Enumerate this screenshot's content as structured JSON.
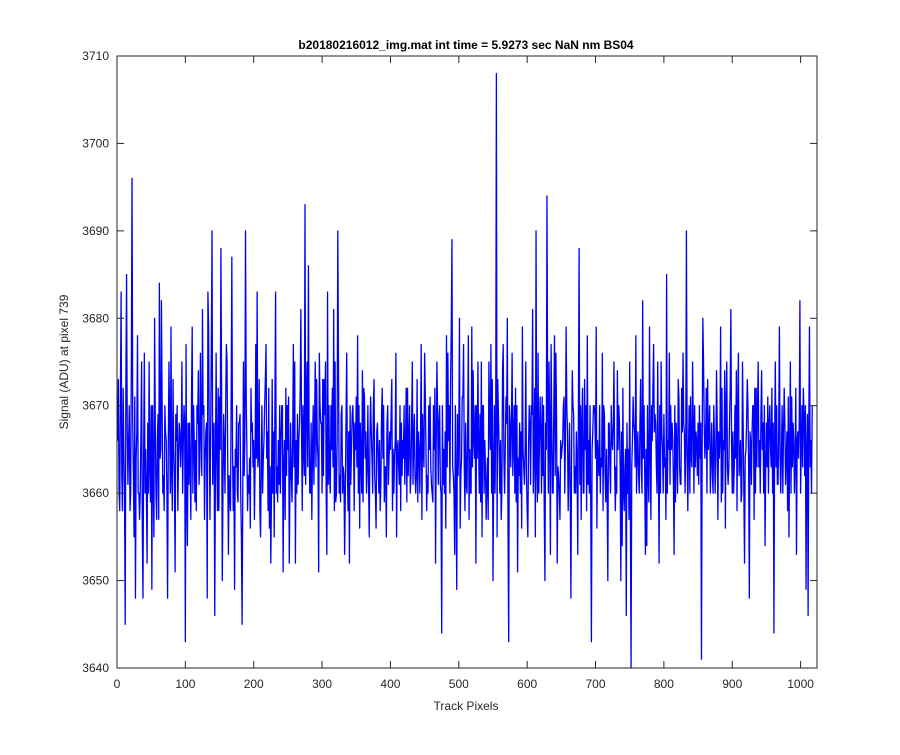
{
  "figure": {
    "background": "#ffffff"
  },
  "chart_data": {
    "type": "line",
    "title": "b20180216012_img.mat int time = 5.9273 sec  NaN nm BS04",
    "xlabel": "Track Pixels",
    "ylabel": "Signal (ADU) at pixel 739",
    "xlim": [
      0,
      1024
    ],
    "ylim": [
      3640,
      3710
    ],
    "xticks": [
      0,
      100,
      200,
      300,
      400,
      500,
      600,
      700,
      800,
      900,
      1000
    ],
    "yticks": [
      3640,
      3650,
      3660,
      3670,
      3680,
      3690,
      3700,
      3710
    ],
    "grid": false,
    "line_color": "#0000ff",
    "series": [
      {
        "x_start": 1,
        "x_step": 1,
        "values": [
          3666,
          3673,
          3660,
          3658,
          3671,
          3683,
          3662,
          3658,
          3672,
          3665,
          3660,
          3645,
          3673,
          3685,
          3667,
          3661,
          3666,
          3670,
          3658,
          3660,
          3675,
          3696,
          3668,
          3662,
          3655,
          3671,
          3648,
          3664,
          3667,
          3678,
          3660,
          3660,
          3657,
          3660,
          3667,
          3675,
          3656,
          3648,
          3665,
          3676,
          3660,
          3665,
          3660,
          3652,
          3668,
          3660,
          3675,
          3663,
          3659,
          3670,
          3649,
          3670,
          3662,
          3655,
          3680,
          3668,
          3660,
          3657,
          3666,
          3669,
          3657,
          3684,
          3664,
          3665,
          3682,
          3670,
          3660,
          3662,
          3658,
          3670,
          3667,
          3666,
          3660,
          3648,
          3665,
          3675,
          3668,
          3660,
          3679,
          3662,
          3658,
          3673,
          3665,
          3662,
          3651,
          3669,
          3666,
          3670,
          3658,
          3664,
          3668,
          3667,
          3663,
          3666,
          3675,
          3660,
          3666,
          3670,
          3668,
          3643,
          3677,
          3660,
          3654,
          3668,
          3661,
          3668,
          3663,
          3657,
          3671,
          3679,
          3660,
          3670,
          3666,
          3659,
          3666,
          3658,
          3670,
          3668,
          3674,
          3661,
          3663,
          3676,
          3667,
          3662,
          3681,
          3669,
          3670,
          3657,
          3664,
          3667,
          3668,
          3648,
          3683,
          3679,
          3666,
          3657,
          3667,
          3677,
          3690,
          3661,
          3667,
          3668,
          3646,
          3663,
          3676,
          3664,
          3658,
          3672,
          3658,
          3671,
          3665,
          3688,
          3672,
          3650,
          3660,
          3669,
          3665,
          3660,
          3670,
          3677,
          3675,
          3663,
          3653,
          3662,
          3660,
          3658,
          3671,
          3687,
          3665,
          3658,
          3663,
          3649,
          3665,
          3663,
          3670,
          3660,
          3659,
          3668,
          3668,
          3669,
          3660,
          3655,
          3645,
          3660,
          3675,
          3662,
          3666,
          3690,
          3671,
          3665,
          3658,
          3662,
          3660,
          3664,
          3656,
          3672,
          3667,
          3668,
          3663,
          3666,
          3657,
          3663,
          3677,
          3664,
          3683,
          3663,
          3664,
          3673,
          3658,
          3655,
          3663,
          3670,
          3660,
          3664,
          3666,
          3670,
          3673,
          3677,
          3664,
          3667,
          3658,
          3672,
          3656,
          3663,
          3652,
          3660,
          3673,
          3660,
          3667,
          3655,
          3670,
          3683,
          3660,
          3663,
          3659,
          3666,
          3661,
          3670,
          3660,
          3666,
          3670,
          3670,
          3651,
          3663,
          3666,
          3657,
          3672,
          3662,
          3670,
          3665,
          3671,
          3652,
          3661,
          3668,
          3662,
          3659,
          3666,
          3677,
          3663,
          3675,
          3652,
          3666,
          3660,
          3669,
          3661,
          3666,
          3668,
          3672,
          3681,
          3667,
          3658,
          3670,
          3665,
          3662,
          3693,
          3661,
          3670,
          3675,
          3663,
          3686,
          3667,
          3660,
          3660,
          3668,
          3657,
          3665,
          3670,
          3661,
          3668,
          3675,
          3663,
          3673,
          3666,
          3664,
          3651,
          3676,
          3670,
          3668,
          3668,
          3660,
          3673,
          3662,
          3673,
          3669,
          3675,
          3660,
          3653,
          3683,
          3661,
          3670,
          3662,
          3660,
          3670,
          3665,
          3672,
          3663,
          3681,
          3658,
          3675,
          3659,
          3660,
          3666,
          3690,
          3675,
          3660,
          3662,
          3659,
          3669,
          3670,
          3660,
          3663,
          3662,
          3653,
          3660,
          3668,
          3676,
          3663,
          3658,
          3667,
          3652,
          3670,
          3661,
          3665,
          3669,
          3670,
          3667,
          3658,
          3668,
          3665,
          3671,
          3663,
          3678,
          3660,
          3670,
          3656,
          3668,
          3664,
          3660,
          3674,
          3659,
          3672,
          3671,
          3664,
          3667,
          3660,
          3663,
          3670,
          3661,
          3655,
          3666,
          3671,
          3667,
          3664,
          3660,
          3670,
          3673,
          3662,
          3660,
          3656,
          3667,
          3668,
          3664,
          3660,
          3666,
          3658,
          3661,
          3669,
          3672,
          3664,
          3670,
          3659,
          3663,
          3663,
          3655,
          3668,
          3670,
          3661,
          3664,
          3667,
          3665,
          3669,
          3673,
          3658,
          3665,
          3660,
          3664,
          3666,
          3676,
          3655,
          3665,
          3666,
          3663,
          3661,
          3670,
          3658,
          3668,
          3662,
          3666,
          3664,
          3670,
          3661,
          3665,
          3672,
          3659,
          3672,
          3662,
          3666,
          3670,
          3660,
          3662,
          3668,
          3675,
          3661,
          3666,
          3669,
          3662,
          3660,
          3662,
          3673,
          3659,
          3667,
          3665,
          3660,
          3666,
          3677,
          3657,
          3669,
          3665,
          3663,
          3676,
          3671,
          3665,
          3658,
          3662,
          3660,
          3670,
          3665,
          3671,
          3663,
          3661,
          3660,
          3659,
          3670,
          3665,
          3672,
          3652,
          3666,
          3675,
          3669,
          3661,
          3668,
          3670,
          3661,
          3660,
          3644,
          3670,
          3661,
          3665,
          3660,
          3667,
          3656,
          3678,
          3663,
          3676,
          3666,
          3670,
          3660,
          3673,
          3679,
          3689,
          3663,
          3662,
          3660,
          3653,
          3670,
          3661,
          3649,
          3669,
          3662,
          3667,
          3680,
          3656,
          3662,
          3664,
          3671,
          3671,
          3677,
          3663,
          3658,
          3668,
          3661,
          3660,
          3668,
          3678,
          3657,
          3665,
          3660,
          3660,
          3679,
          3663,
          3674,
          3666,
          3664,
          3670,
          3652,
          3670,
          3664,
          3675,
          3665,
          3660,
          3669,
          3659,
          3675,
          3655,
          3670,
          3670,
          3660,
          3666,
          3663,
          3657,
          3661,
          3664,
          3657,
          3675,
          3668,
          3665,
          3677,
          3660,
          3673,
          3650,
          3662,
          3670,
          3660,
          3668,
          3708,
          3655,
          3673,
          3669,
          3665,
          3660,
          3666,
          3657,
          3660,
          3674,
          3677,
          3664,
          3660,
          3665,
          3671,
          3668,
          3680,
          3656,
          3643,
          3670,
          3668,
          3663,
          3668,
          3676,
          3662,
          3666,
          3670,
          3660,
          3672,
          3659,
          3670,
          3651,
          3664,
          3662,
          3668,
          3660,
          3667,
          3656,
          3679,
          3665,
          3663,
          3661,
          3665,
          3675,
          3662,
          3658,
          3655,
          3665,
          3670,
          3668,
          3661,
          3670,
          3669,
          3681,
          3660,
          3665,
          3672,
          3655,
          3690,
          3663,
          3659,
          3676,
          3660,
          3666,
          3671,
          3667,
          3660,
          3671,
          3662,
          3670,
          3658,
          3650,
          3668,
          3665,
          3694,
          3670,
          3660,
          3675,
          3667,
          3653,
          3677,
          3668,
          3660,
          3660,
          3670,
          3678,
          3662,
          3676,
          3669,
          3652,
          3663,
          3662,
          3660,
          3657,
          3666,
          3664,
          3665,
          3666,
          3670,
          3671,
          3660,
          3666,
          3679,
          3670,
          3667,
          3658,
          3663,
          3668,
          3660,
          3648,
          3665,
          3674,
          3670,
          3669,
          3660,
          3663,
          3660,
          3667,
          3664,
          3653,
          3670,
          3688,
          3661,
          3670,
          3657,
          3668,
          3672,
          3660,
          3660,
          3673,
          3665,
          3670,
          3658,
          3678,
          3661,
          3666,
          3660,
          3670,
          3659,
          3643,
          3665,
          3667,
          3670,
          3670,
          3669,
          3664,
          3679,
          3656,
          3666,
          3664,
          3662,
          3670,
          3660,
          3664,
          3663,
          3676,
          3658,
          3670,
          3669,
          3662,
          3659,
          3665,
          3660,
          3650,
          3668,
          3668,
          3663,
          3660,
          3670,
          3666,
          3665,
          3668,
          3675,
          3663,
          3658,
          3663,
          3660,
          3674,
          3665,
          3670,
          3668,
          3663,
          3650,
          3667,
          3654,
          3672,
          3660,
          3658,
          3663,
          3665,
          3646,
          3668,
          3660,
          3665,
          3657,
          3675,
          3658,
          3640,
          3663,
          3666,
          3671,
          3668,
          3667,
          3663,
          3678,
          3660,
          3665,
          3667,
          3662,
          3660,
          3668,
          3673,
          3663,
          3660,
          3682,
          3664,
          3670,
          3662,
          3653,
          3665,
          3654,
          3670,
          3662,
          3659,
          3679,
          3665,
          3657,
          3670,
          3666,
          3672,
          3677,
          3667,
          3669,
          3668,
          3663,
          3660,
          3675,
          3663,
          3652,
          3670,
          3660,
          3675,
          3667,
          3665,
          3660,
          3669,
          3663,
          3664,
          3657,
          3685,
          3660,
          3666,
          3665,
          3676,
          3661,
          3670,
          3665,
          3668,
          3666,
          3661,
          3653,
          3670,
          3659,
          3668,
          3665,
          3660,
          3673,
          3671,
          3663,
          3661,
          3661,
          3672,
          3667,
          3676,
          3668,
          3667,
          3660,
          3665,
          3690,
          3665,
          3658,
          3665,
          3670,
          3660,
          3671,
          3664,
          3663,
          3675,
          3668,
          3660,
          3670,
          3663,
          3667,
          3666,
          3662,
          3668,
          3661,
          3670,
          3664,
          3668,
          3641,
          3665,
          3680,
          3675,
          3668,
          3664,
          3666,
          3672,
          3660,
          3673,
          3665,
          3667,
          3670,
          3660,
          3664,
          3668,
          3662,
          3660,
          3670,
          3666,
          3660,
          3664,
          3674,
          3668,
          3657,
          3667,
          3664,
          3666,
          3679,
          3659,
          3672,
          3660,
          3666,
          3665,
          3674,
          3656,
          3670,
          3675,
          3663,
          3661,
          3663,
          3668,
          3672,
          3681,
          3666,
          3660,
          3667,
          3660,
          3663,
          3670,
          3664,
          3674,
          3658,
          3670,
          3676,
          3662,
          3664,
          3666,
          3659,
          3660,
          3675,
          3668,
          3660,
          3652,
          3664,
          3665,
          3668,
          3673,
          3670,
          3663,
          3648,
          3667,
          3666,
          3661,
          3667,
          3670,
          3670,
          3657,
          3672,
          3660,
          3672,
          3663,
          3670,
          3675,
          3663,
          3666,
          3660,
          3669,
          3674,
          3665,
          3668,
          3660,
          3670,
          3654,
          3663,
          3668,
          3663,
          3671,
          3660,
          3668,
          3670,
          3665,
          3663,
          3672,
          3660,
          3668,
          3644,
          3666,
          3675,
          3663,
          3670,
          3661,
          3661,
          3667,
          3679,
          3664,
          3660,
          3665,
          3670,
          3660,
          3667,
          3672,
          3668,
          3661,
          3664,
          3667,
          3658,
          3671,
          3655,
          3665,
          3675,
          3660,
          3671,
          3663,
          3668,
          3666,
          3660,
          3664,
          3672,
          3653,
          3666,
          3667,
          3664,
          3668,
          3682,
          3660,
          3665,
          3670,
          3663,
          3672,
          3669,
          3662,
          3670,
          3649,
          3665,
          3669,
          3646,
          3668,
          3679,
          3663,
          3666,
          3660,
          3670
        ]
      }
    ]
  }
}
